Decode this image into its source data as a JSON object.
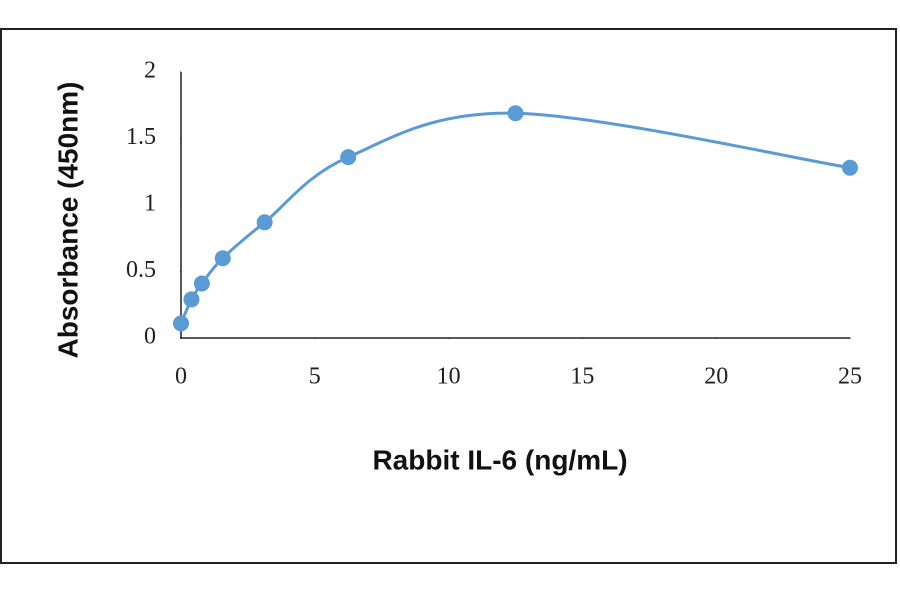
{
  "chart_data": {
    "type": "scatter-smooth",
    "x_label": "Rabbit IL-6 (ng/mL)",
    "y_label": "Absorbance (450nm)",
    "x": [
      0,
      0.39,
      0.78,
      1.56,
      3.125,
      6.25,
      12.5,
      25
    ],
    "values": [
      0.11,
      0.29,
      0.41,
      0.6,
      0.87,
      1.36,
      1.69,
      1.28
    ],
    "color": "#5b9bd5",
    "xlim": [
      0,
      25
    ],
    "xticks": [
      0,
      5,
      10,
      15,
      20,
      25
    ],
    "ylim": [
      0,
      2
    ],
    "yticks": [
      0,
      0.5,
      1,
      1.5,
      2
    ]
  }
}
